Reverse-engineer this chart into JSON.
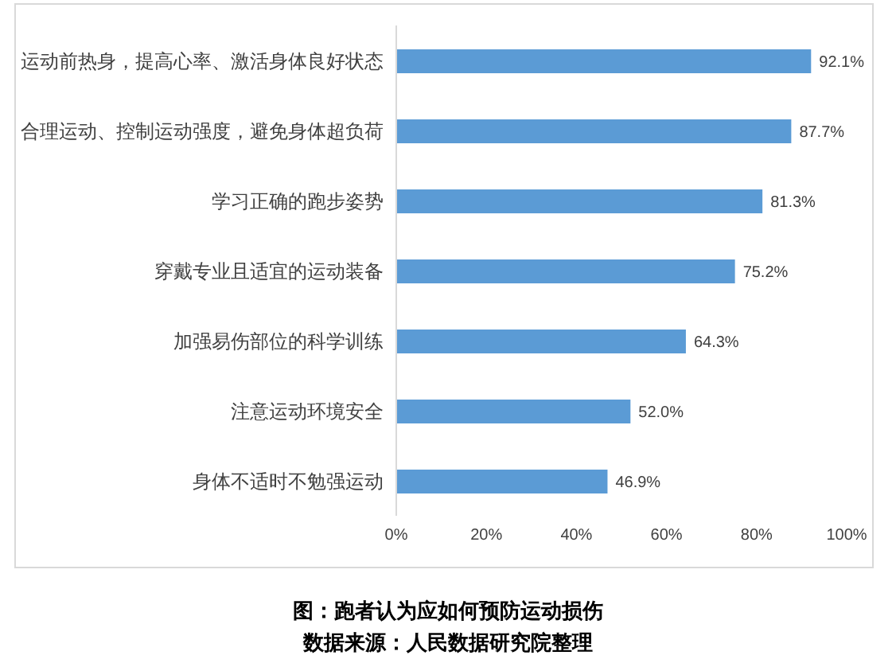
{
  "chart_data": {
    "type": "bar",
    "orientation": "horizontal",
    "title": "图：跑者认为应如何预防运动损伤",
    "annotations": [
      "数据来源：人民数据研究院整理"
    ],
    "categories": [
      "运动前热身，提高心率、激活身体良好状态",
      "合理运动、控制运动强度，避免身体超负荷",
      "学习正确的跑步姿势",
      "穿戴专业且适宜的运动装备",
      "加强易伤部位的科学训练",
      "注意运动环境安全",
      "身体不适时不勉强运动"
    ],
    "values": [
      92.1,
      87.7,
      81.3,
      75.2,
      64.3,
      52.0,
      46.9
    ],
    "value_labels": [
      "92.1%",
      "87.7%",
      "81.3%",
      "75.2%",
      "64.3%",
      "52.0%",
      "46.9%"
    ],
    "color": "#5b9bd5",
    "xlim": [
      0,
      100
    ],
    "xticks": [
      {
        "value": 0,
        "label": "0%"
      },
      {
        "value": 20,
        "label": "20%"
      },
      {
        "value": 40,
        "label": "40%"
      },
      {
        "value": 60,
        "label": "60%"
      },
      {
        "value": 80,
        "label": "80%"
      },
      {
        "value": 100,
        "label": "100%"
      }
    ]
  }
}
